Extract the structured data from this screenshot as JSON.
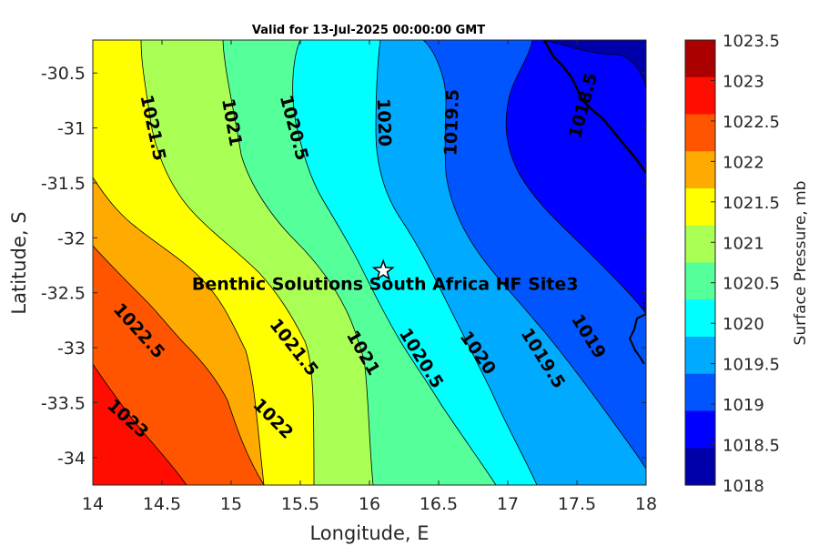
{
  "chart_data": {
    "type": "contour-map",
    "title": "Valid for 13-Jul-2025 00:00:00 GMT",
    "xlabel": "Longitude, E",
    "ylabel": "Latitude, S",
    "xlim": [
      14,
      18
    ],
    "ylim": [
      -34.25,
      -30.2
    ],
    "xticks": [
      "14",
      "14.5",
      "15",
      "15.5",
      "16",
      "16.5",
      "17",
      "17.5",
      "18"
    ],
    "yticks": [
      "-30.5",
      "-31",
      "-31.5",
      "-32",
      "-32.5",
      "-33",
      "-33.5",
      "-34"
    ],
    "colorbar": {
      "label": "Surface Pressure, mb",
      "ticks": [
        "1023.5",
        "1023",
        "1022.5",
        "1022",
        "1021.5",
        "1021",
        "1020.5",
        "1020",
        "1019.5",
        "1019",
        "1018.5",
        "1018"
      ],
      "colors": [
        "#aa0000",
        "#ff0d00",
        "#ff5500",
        "#ffaa00",
        "#ffff00",
        "#aaff55",
        "#55ff9a",
        "#00ffff",
        "#00aaff",
        "#0055ff",
        "#0000ff",
        "#0000aa"
      ]
    },
    "contour_levels": [
      1018.5,
      1019,
      1019.5,
      1020,
      1020.5,
      1021,
      1021.5,
      1022,
      1022.5,
      1023
    ],
    "contour_labels": [
      {
        "text": "1021.5",
        "lon": 14.43,
        "lat": -31.0,
        "angle": 78
      },
      {
        "text": "1021",
        "lon": 15.0,
        "lat": -30.95,
        "angle": 80
      },
      {
        "text": "1020.5",
        "lon": 15.45,
        "lat": -31.0,
        "angle": 75
      },
      {
        "text": "1020",
        "lon": 16.1,
        "lat": -30.95,
        "angle": 88
      },
      {
        "text": "1019.5",
        "lon": 16.6,
        "lat": -30.95,
        "angle": -88
      },
      {
        "text": "1018.5",
        "lon": 17.55,
        "lat": -30.8,
        "angle": -75
      },
      {
        "text": "1022.5",
        "lon": 14.33,
        "lat": -32.85,
        "angle": 48
      },
      {
        "text": "1021.5",
        "lon": 15.45,
        "lat": -33.0,
        "angle": 52
      },
      {
        "text": "1021",
        "lon": 15.95,
        "lat": -33.05,
        "angle": 60
      },
      {
        "text": "1020.5",
        "lon": 16.37,
        "lat": -33.1,
        "angle": 58
      },
      {
        "text": "1020",
        "lon": 16.78,
        "lat": -33.05,
        "angle": 55
      },
      {
        "text": "1019.5",
        "lon": 17.25,
        "lat": -33.1,
        "angle": 58
      },
      {
        "text": "1019",
        "lon": 17.58,
        "lat": -32.9,
        "angle": 58
      },
      {
        "text": "1023",
        "lon": 14.25,
        "lat": -33.65,
        "angle": 42
      },
      {
        "text": "1022",
        "lon": 15.3,
        "lat": -33.65,
        "angle": 45
      }
    ],
    "site": {
      "name": "Benthic Solutions South Africa HF Site3",
      "lon": 16.1,
      "lat": -32.3
    }
  }
}
